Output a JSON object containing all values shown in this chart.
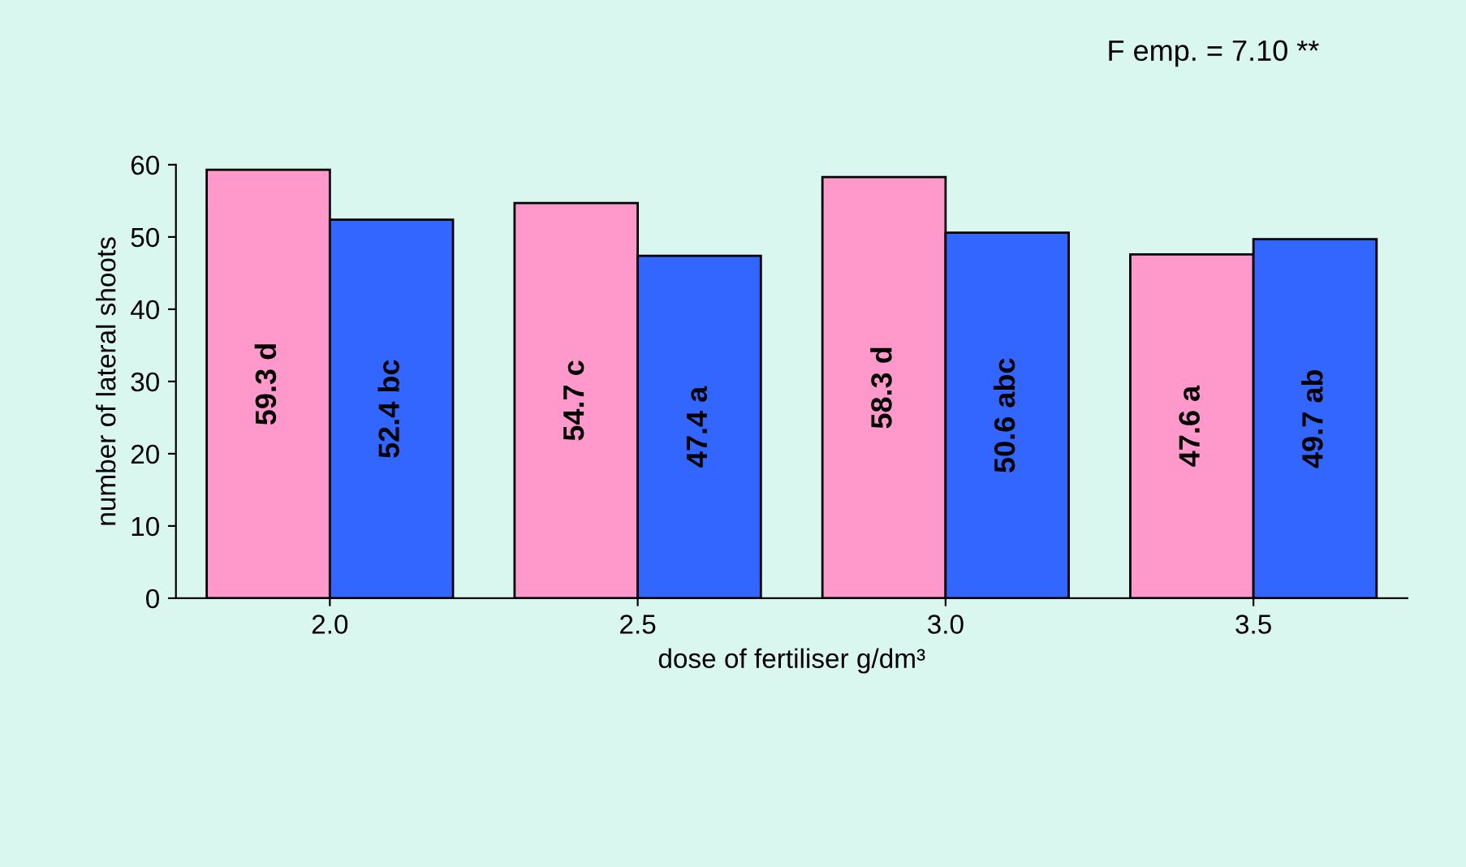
{
  "chart_data": {
    "type": "bar",
    "xlabel": "dose of fertiliser g/dm³",
    "ylabel": "number of lateral shoots",
    "annotations": [
      "F emp. = 7.10 **"
    ],
    "categories": [
      "2.0",
      "2.5",
      "3.0",
      "3.5"
    ],
    "series": [
      {
        "color": "#ff99cc",
        "values": [
          59.3,
          54.7,
          58.3,
          47.6
        ],
        "value_labels": [
          "59.3 d",
          "54.7 c",
          "58.3 d",
          "47.6 a"
        ]
      },
      {
        "color": "#3366ff",
        "values": [
          52.4,
          47.4,
          50.6,
          49.7
        ],
        "value_labels": [
          "52.4 bc",
          "47.4 a",
          "50.6 abc",
          "49.7 ab"
        ]
      }
    ],
    "ylim": [
      0,
      60
    ],
    "yticks": [
      0,
      10,
      20,
      30,
      40,
      50,
      60
    ],
    "grid": false
  }
}
